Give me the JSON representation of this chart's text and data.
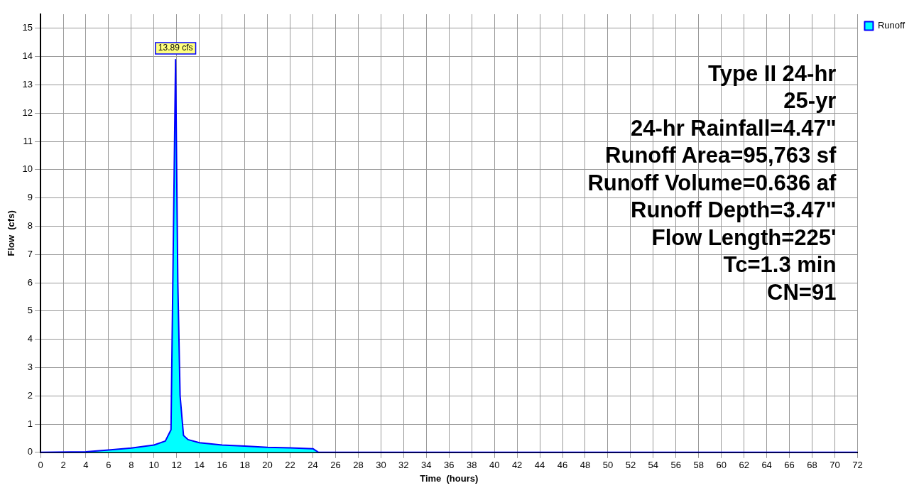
{
  "chart_data": {
    "type": "area",
    "xlabel": "Time  (hours)",
    "ylabel": "Flow  (cfs)",
    "x": [
      0,
      4,
      6,
      8,
      10,
      11,
      11.5,
      11.9,
      12.1,
      12.3,
      12.6,
      13,
      14,
      16,
      18,
      20,
      22,
      24,
      24.5,
      26,
      72
    ],
    "series": [
      {
        "name": "Runoff",
        "color": "#00ffff",
        "values": [
          0,
          0.02,
          0.08,
          0.15,
          0.26,
          0.4,
          0.8,
          13.89,
          6,
          2,
          0.6,
          0.45,
          0.34,
          0.26,
          0.22,
          0.18,
          0.16,
          0.13,
          0,
          0,
          0
        ]
      }
    ],
    "xlim": [
      0,
      72
    ],
    "xticks": [
      0,
      2,
      4,
      6,
      8,
      10,
      12,
      14,
      16,
      18,
      20,
      22,
      24,
      26,
      28,
      30,
      32,
      34,
      36,
      38,
      40,
      42,
      44,
      46,
      48,
      50,
      52,
      54,
      56,
      58,
      60,
      62,
      64,
      66,
      68,
      70,
      72
    ],
    "ylim": [
      0,
      15.5
    ],
    "yticks": [
      0,
      1,
      2,
      3,
      4,
      5,
      6,
      7,
      8,
      9,
      10,
      11,
      12,
      13,
      14,
      15
    ],
    "grid": true,
    "legend": "top right",
    "marker": "none",
    "annotations": [
      {
        "text": "13.89 cfs",
        "x": 11.9,
        "y": 13.89
      },
      "Type II 24-hr",
      "25-yr",
      "24-hr Rainfall=4.47\"",
      "Runoff Area=95,763 sf",
      "Runoff Volume=0.636 af",
      "Runoff Depth=3.47\"",
      "Flow Length=225'",
      "Tc=1.3 min",
      "CN=91"
    ]
  }
}
